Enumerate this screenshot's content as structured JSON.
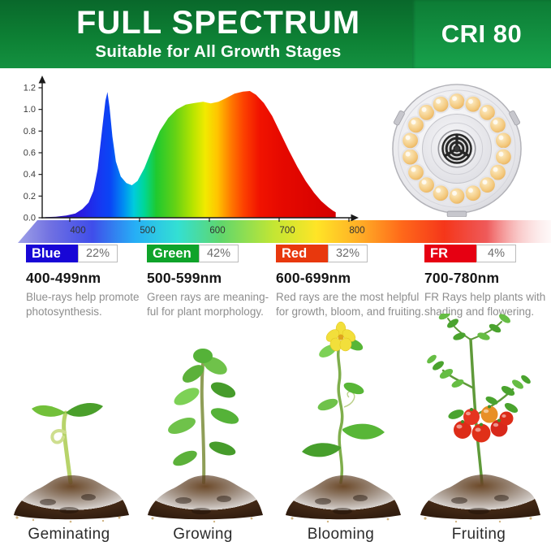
{
  "banner": {
    "title": "FULL SPECTRUM",
    "subtitle": "Suitable for All Growth Stages",
    "badge": "CRI 80",
    "green_dark": "#09682b",
    "green_light": "#149140"
  },
  "chart_data": {
    "type": "area",
    "x_ticks": [
      400,
      500,
      600,
      700,
      800
    ],
    "y_ticks": [
      0.0,
      0.2,
      0.4,
      0.6,
      0.8,
      1.0,
      1.2
    ],
    "xlim": [
      365,
      800
    ],
    "ylim": [
      0,
      1.2
    ],
    "grid": false,
    "legend": false,
    "series": [
      {
        "name": "relative-spectral-intensity",
        "points": [
          [
            365,
            0.005
          ],
          [
            380,
            0.01
          ],
          [
            395,
            0.02
          ],
          [
            408,
            0.04
          ],
          [
            418,
            0.08
          ],
          [
            427,
            0.14
          ],
          [
            434,
            0.25
          ],
          [
            440,
            0.45
          ],
          [
            446,
            0.8
          ],
          [
            451,
            1.08
          ],
          [
            454,
            1.16
          ],
          [
            457,
            1.02
          ],
          [
            461,
            0.75
          ],
          [
            466,
            0.52
          ],
          [
            473,
            0.38
          ],
          [
            481,
            0.32
          ],
          [
            489,
            0.3
          ],
          [
            497,
            0.34
          ],
          [
            507,
            0.46
          ],
          [
            517,
            0.62
          ],
          [
            529,
            0.8
          ],
          [
            541,
            0.92
          ],
          [
            553,
            1.0
          ],
          [
            566,
            1.045
          ],
          [
            579,
            1.06
          ],
          [
            591,
            1.07
          ],
          [
            602,
            1.055
          ],
          [
            613,
            1.07
          ],
          [
            624,
            1.105
          ],
          [
            636,
            1.145
          ],
          [
            648,
            1.165
          ],
          [
            658,
            1.17
          ],
          [
            667,
            1.135
          ],
          [
            678,
            1.06
          ],
          [
            690,
            0.94
          ],
          [
            702,
            0.78
          ],
          [
            714,
            0.62
          ],
          [
            726,
            0.47
          ],
          [
            738,
            0.34
          ],
          [
            750,
            0.23
          ],
          [
            760,
            0.155
          ],
          [
            770,
            0.1
          ],
          [
            777,
            0.065
          ],
          [
            781,
            0.05
          ]
        ]
      }
    ]
  },
  "bands": [
    {
      "label": "Blue",
      "percent": "22%",
      "range": "400-499nm",
      "desc_line1": "Blue-rays help promote",
      "desc_line2": "photosynthesis.",
      "color": "#1806d6"
    },
    {
      "label": "Green",
      "percent": "42%",
      "range": "500-599nm",
      "desc_line1": "Green rays are meaning-",
      "desc_line2": "ful for plant morphology.",
      "color": "#0fa32a"
    },
    {
      "label": "Red",
      "percent": "32%",
      "range": "600-699nm",
      "desc_line1": "Red rays are the most helpful",
      "desc_line2": "for growth, bloom, and fruiting.",
      "color": "#e8380d"
    },
    {
      "label": "FR",
      "percent": "4%",
      "range": "700-780nm",
      "desc_line1": "FR Rays help plants with",
      "desc_line2": "shading and flowering.",
      "color": "#e60012"
    }
  ],
  "stages": [
    {
      "label": "Geminating"
    },
    {
      "label": "Growing"
    },
    {
      "label": "Blooming"
    },
    {
      "label": "Fruiting"
    }
  ]
}
